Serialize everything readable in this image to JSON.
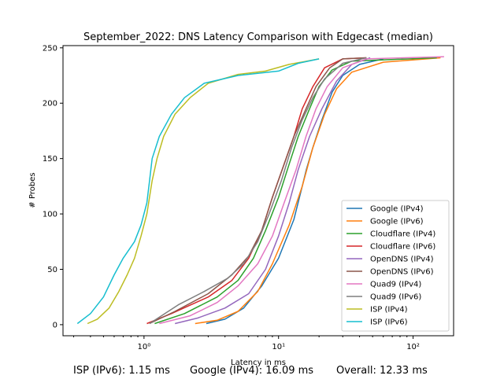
{
  "chart_data": {
    "type": "line",
    "title": "September_2022: DNS Latency Comparison with Edgecast (median)",
    "xlabel": "Latency in ms",
    "ylabel": "# Probes",
    "xscale": "log",
    "xlim": [
      0.25,
      200
    ],
    "ylim": [
      -10,
      252
    ],
    "x_ticks": [
      1,
      10,
      100
    ],
    "x_tick_labels": [
      "10⁰",
      "10¹",
      "10²"
    ],
    "y_ticks": [
      0,
      50,
      100,
      150,
      200,
      250
    ],
    "grid": false,
    "legend_position": "lower-right",
    "series": [
      {
        "name": "Google (IPv4)",
        "color": "#1f77b4",
        "points": [
          [
            2.9,
            1
          ],
          [
            4,
            5
          ],
          [
            5.5,
            15
          ],
          [
            7.5,
            35
          ],
          [
            10,
            60
          ],
          [
            13,
            95
          ],
          [
            15,
            125
          ],
          [
            16.09,
            140
          ],
          [
            18,
            160
          ],
          [
            21,
            185
          ],
          [
            25,
            210
          ],
          [
            30,
            225
          ],
          [
            40,
            235
          ],
          [
            60,
            240
          ]
        ]
      },
      {
        "name": "Google (IPv6)",
        "color": "#ff7f0e",
        "points": [
          [
            2.4,
            1
          ],
          [
            3.5,
            4
          ],
          [
            5,
            12
          ],
          [
            7,
            30
          ],
          [
            9,
            55
          ],
          [
            12,
            90
          ],
          [
            15,
            125
          ],
          [
            18,
            160
          ],
          [
            22,
            190
          ],
          [
            27,
            213
          ],
          [
            35,
            228
          ],
          [
            60,
            237
          ],
          [
            160,
            241
          ]
        ]
      },
      {
        "name": "Cloudflare (IPv4)",
        "color": "#2ca02c",
        "points": [
          [
            1.2,
            1
          ],
          [
            2,
            10
          ],
          [
            3.5,
            25
          ],
          [
            5,
            40
          ],
          [
            6.5,
            60
          ],
          [
            8,
            85
          ],
          [
            10,
            115
          ],
          [
            12,
            145
          ],
          [
            14,
            170
          ],
          [
            17,
            195
          ],
          [
            20,
            215
          ],
          [
            25,
            230
          ],
          [
            35,
            238
          ],
          [
            150,
            241
          ]
        ]
      },
      {
        "name": "Cloudflare (IPv6)",
        "color": "#d62728",
        "points": [
          [
            1.05,
            1
          ],
          [
            1.6,
            10
          ],
          [
            3,
            25
          ],
          [
            4.5,
            40
          ],
          [
            6,
            60
          ],
          [
            7.5,
            85
          ],
          [
            9,
            115
          ],
          [
            11,
            145
          ],
          [
            13,
            170
          ],
          [
            15,
            195
          ],
          [
            18,
            215
          ],
          [
            22,
            232
          ],
          [
            30,
            240
          ],
          [
            45,
            241
          ]
        ]
      },
      {
        "name": "OpenDNS (IPv4)",
        "color": "#9467bd",
        "points": [
          [
            1.7,
            1
          ],
          [
            2.5,
            6
          ],
          [
            4,
            15
          ],
          [
            6,
            28
          ],
          [
            8,
            50
          ],
          [
            10,
            80
          ],
          [
            12,
            110
          ],
          [
            14,
            140
          ],
          [
            17,
            170
          ],
          [
            21,
            195
          ],
          [
            27,
            220
          ],
          [
            35,
            235
          ],
          [
            48,
            241
          ]
        ]
      },
      {
        "name": "OpenDNS (IPv6)",
        "color": "#8c564b",
        "points": [
          [
            1.1,
            1
          ],
          [
            1.7,
            12
          ],
          [
            3,
            28
          ],
          [
            4.5,
            45
          ],
          [
            6,
            62
          ],
          [
            7.5,
            85
          ],
          [
            9,
            115
          ],
          [
            11,
            145
          ],
          [
            13,
            170
          ],
          [
            16,
            195
          ],
          [
            19,
            215
          ],
          [
            24,
            232
          ],
          [
            30,
            240
          ],
          [
            45,
            241
          ]
        ]
      },
      {
        "name": "Quad9 (IPv4)",
        "color": "#e377c2",
        "points": [
          [
            1.3,
            1
          ],
          [
            2.2,
            8
          ],
          [
            3.5,
            20
          ],
          [
            5,
            35
          ],
          [
            7,
            55
          ],
          [
            9,
            80
          ],
          [
            11,
            110
          ],
          [
            13.5,
            140
          ],
          [
            16,
            170
          ],
          [
            19,
            195
          ],
          [
            23,
            215
          ],
          [
            30,
            232
          ],
          [
            45,
            240
          ],
          [
            170,
            242
          ]
        ]
      },
      {
        "name": "Quad9 (IPv6)",
        "color": "#7f7f7f",
        "points": [
          [
            1.1,
            1
          ],
          [
            1.8,
            18
          ],
          [
            2.8,
            30
          ],
          [
            4.2,
            42
          ],
          [
            5.5,
            55
          ],
          [
            7,
            75
          ],
          [
            8.5,
            100
          ],
          [
            10.5,
            130
          ],
          [
            12.5,
            160
          ],
          [
            15,
            185
          ],
          [
            18,
            205
          ],
          [
            22,
            222
          ],
          [
            30,
            236
          ],
          [
            45,
            241
          ]
        ]
      },
      {
        "name": "ISP (IPv4)",
        "color": "#bcbd22",
        "points": [
          [
            0.38,
            1
          ],
          [
            0.45,
            5
          ],
          [
            0.55,
            15
          ],
          [
            0.65,
            30
          ],
          [
            0.75,
            45
          ],
          [
            0.85,
            60
          ],
          [
            0.95,
            80
          ],
          [
            1.05,
            100
          ],
          [
            1.15,
            130
          ],
          [
            1.25,
            150
          ],
          [
            1.4,
            170
          ],
          [
            1.7,
            190
          ],
          [
            2.2,
            205
          ],
          [
            3,
            218
          ],
          [
            5,
            226
          ],
          [
            8,
            229
          ],
          [
            12,
            235
          ],
          [
            20,
            240
          ]
        ]
      },
      {
        "name": "ISP (IPv6)",
        "color": "#17becf",
        "points": [
          [
            0.32,
            1
          ],
          [
            0.4,
            10
          ],
          [
            0.5,
            25
          ],
          [
            0.6,
            45
          ],
          [
            0.7,
            60
          ],
          [
            0.85,
            75
          ],
          [
            0.95,
            90
          ],
          [
            1.05,
            110
          ],
          [
            1.1,
            130
          ],
          [
            1.15,
            150
          ],
          [
            1.3,
            170
          ],
          [
            1.6,
            190
          ],
          [
            2,
            205
          ],
          [
            2.8,
            218
          ],
          [
            5,
            225
          ],
          [
            10,
            229
          ],
          [
            14,
            236
          ],
          [
            20,
            240
          ]
        ]
      }
    ]
  },
  "summary": {
    "isp": "ISP (IPv6): 1.15 ms",
    "google": "Google (IPv4): 16.09 ms",
    "overall": "Overall: 12.33 ms"
  }
}
